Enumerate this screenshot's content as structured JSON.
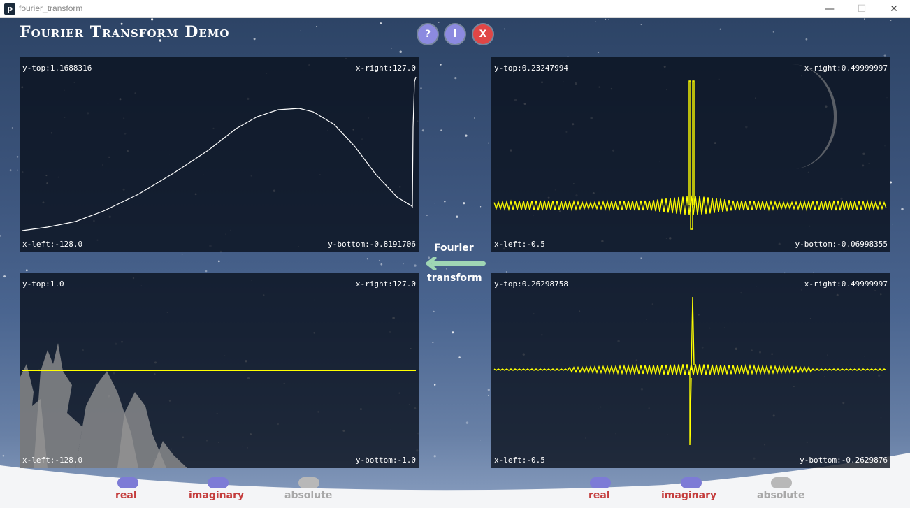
{
  "window": {
    "title": "fourier_transform",
    "icon": "p",
    "min_glyph": "—",
    "max_glyph": "☐",
    "close_glyph": "✕"
  },
  "app": {
    "title": "Fourier Transform Demo",
    "buttons": {
      "help": "?",
      "info": "i",
      "close": "X"
    },
    "arrow_label_line1": "Fourier",
    "arrow_label_line2": "transform"
  },
  "colors": {
    "signal_line": "#ffffff",
    "spectrum_line": "#ffff00",
    "toggle_on": "#7d7bd6",
    "toggle_off": "#b8b8b8",
    "label_active": "#c43d3d",
    "label_inactive": "#a8a8a8"
  },
  "panels": {
    "input_real": {
      "y_top": "y-top:1.1688316",
      "x_right": "x-right:127.0",
      "x_left": "x-left:-128.0",
      "y_bottom": "y-bottom:-0.8191706"
    },
    "input_imag": {
      "y_top": "y-top:1.0",
      "x_right": "x-right:127.0",
      "x_left": "x-left:-128.0",
      "y_bottom": "y-bottom:-1.0"
    },
    "spectrum_real": {
      "y_top": "y-top:0.23247994",
      "x_right": "x-right:0.49999997",
      "x_left": "x-left:-0.5",
      "y_bottom": "y-bottom:-0.06998355"
    },
    "spectrum_imag": {
      "y_top": "y-top:0.26298758",
      "x_right": "x-right:0.49999997",
      "x_left": "x-left:-0.5",
      "y_bottom": "y-bottom:-0.2629876"
    }
  },
  "toggles_left": [
    {
      "label": "real",
      "state": "on"
    },
    {
      "label": "imaginary",
      "state": "on"
    },
    {
      "label": "absolute",
      "state": "off"
    }
  ],
  "toggles_right": [
    {
      "label": "real",
      "state": "on"
    },
    {
      "label": "imaginary",
      "state": "on"
    },
    {
      "label": "absolute",
      "state": "off"
    }
  ]
}
